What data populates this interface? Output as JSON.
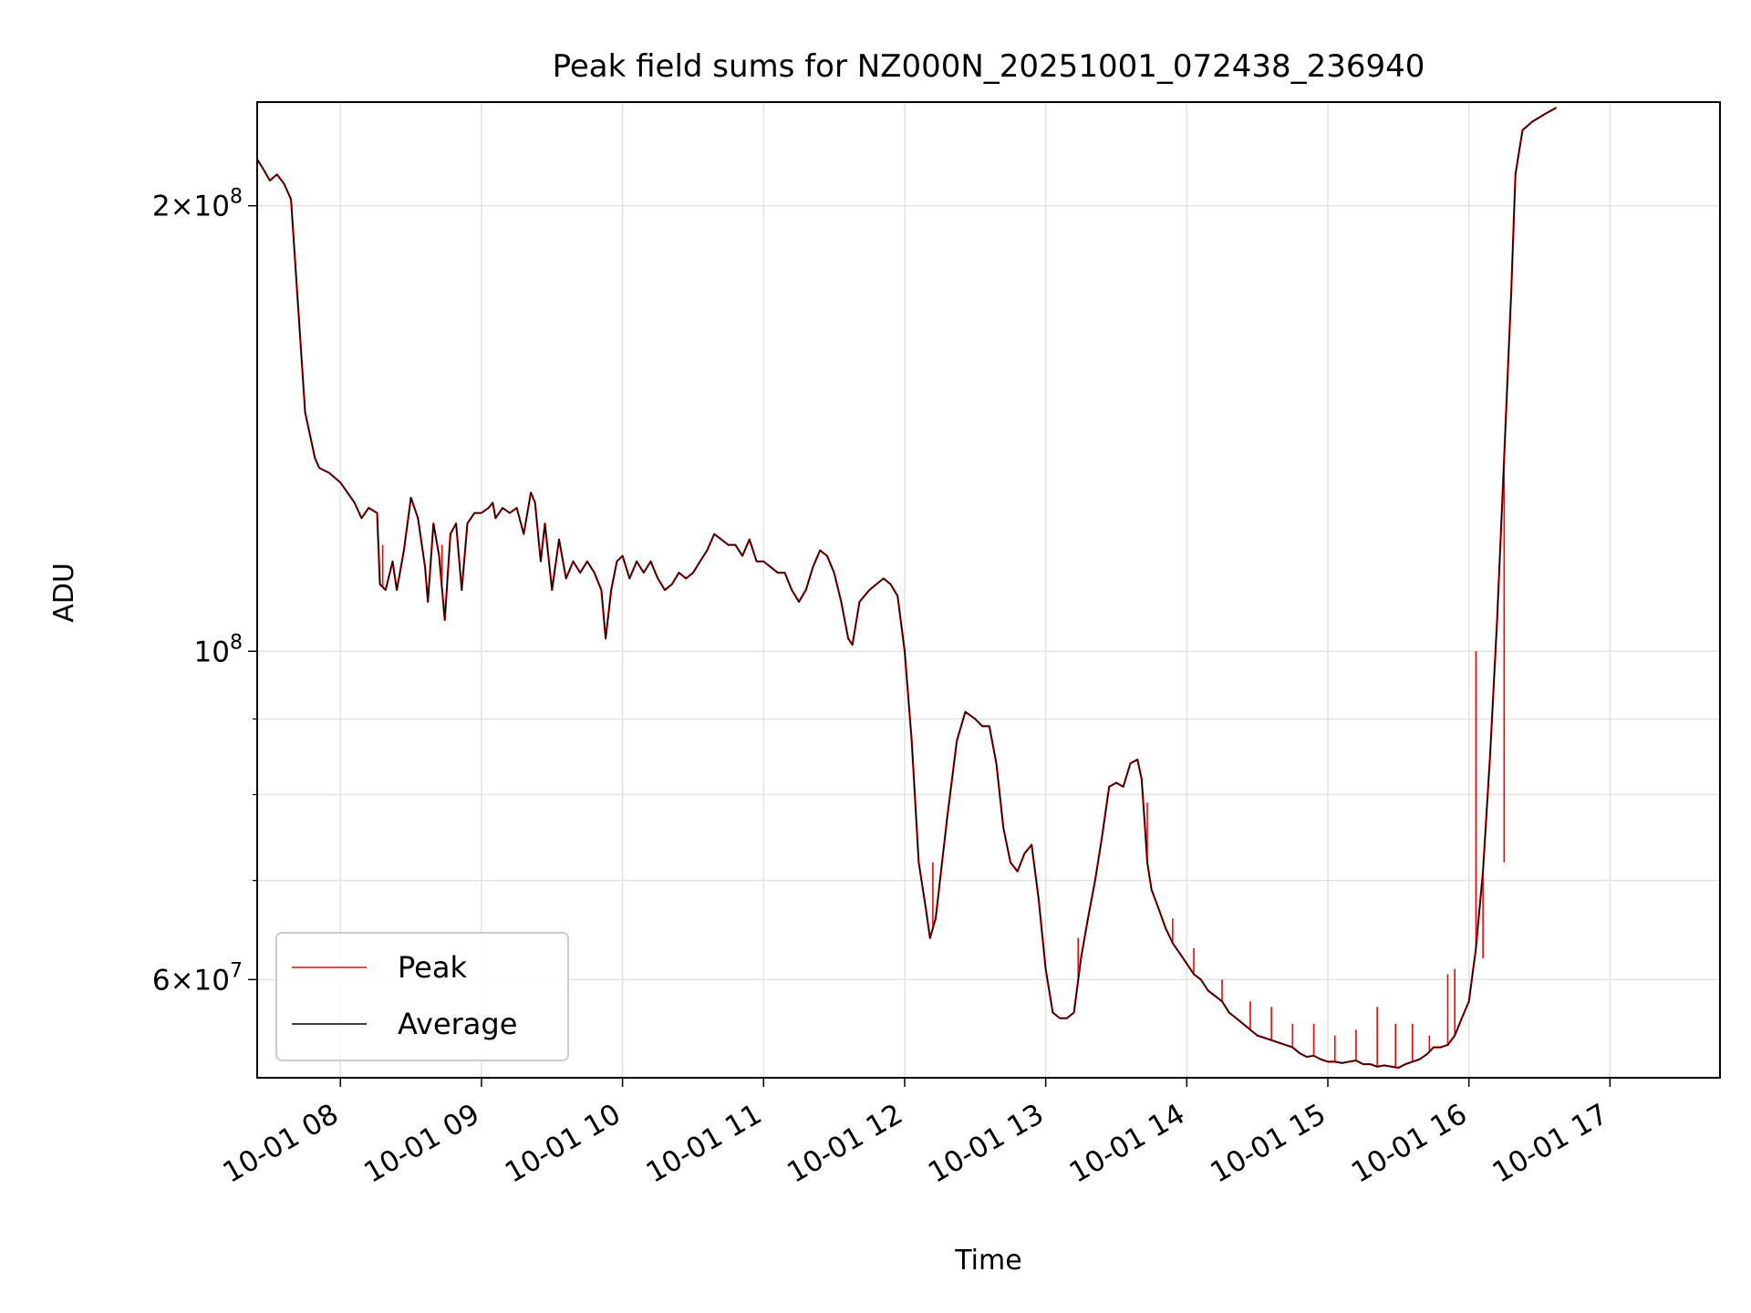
{
  "chart_data": {
    "type": "line",
    "title": "Peak field sums for NZ000N_20251001_072438_236940",
    "xlabel": "Time",
    "ylabel": "ADU",
    "yscale": "log",
    "ylim": [
      51500000,
      235000000
    ],
    "xlim_hours": [
      7.41,
      17.78
    ],
    "grid": true,
    "legend_position": "lower-left",
    "x_ticks": [
      {
        "hour": 8,
        "label": "10-01 08"
      },
      {
        "hour": 9,
        "label": "10-01 09"
      },
      {
        "hour": 10,
        "label": "10-01 10"
      },
      {
        "hour": 11,
        "label": "10-01 11"
      },
      {
        "hour": 12,
        "label": "10-01 12"
      },
      {
        "hour": 13,
        "label": "10-01 13"
      },
      {
        "hour": 14,
        "label": "10-01 14"
      },
      {
        "hour": 15,
        "label": "10-01 15"
      },
      {
        "hour": 16,
        "label": "10-01 16"
      },
      {
        "hour": 17,
        "label": "10-01 17"
      }
    ],
    "y_major_ticks": [
      {
        "value": 60000000,
        "mantissa": "6",
        "exponent": "7"
      },
      {
        "value": 100000000,
        "mantissa": "",
        "exponent": "8"
      },
      {
        "value": 200000000,
        "mantissa": "2",
        "exponent": "8"
      }
    ],
    "y_minor_ticks": [
      70000000,
      80000000,
      90000000
    ],
    "series": [
      {
        "name": "Peak",
        "color": "#ff0000"
      },
      {
        "name": "Average",
        "color": "#000000"
      }
    ],
    "average_points": [
      [
        7.41,
        215
      ],
      [
        7.45,
        212
      ],
      [
        7.5,
        208
      ],
      [
        7.55,
        210
      ],
      [
        7.6,
        207
      ],
      [
        7.62,
        205
      ],
      [
        7.65,
        202
      ],
      [
        7.75,
        145
      ],
      [
        7.82,
        135
      ],
      [
        7.85,
        133
      ],
      [
        7.92,
        132
      ],
      [
        8.0,
        130
      ],
      [
        8.05,
        128
      ],
      [
        8.1,
        126
      ],
      [
        8.15,
        123
      ],
      [
        8.2,
        125
      ],
      [
        8.26,
        124
      ],
      [
        8.28,
        111
      ],
      [
        8.32,
        110
      ],
      [
        8.37,
        115
      ],
      [
        8.4,
        110
      ],
      [
        8.45,
        117
      ],
      [
        8.5,
        127
      ],
      [
        8.55,
        123
      ],
      [
        8.6,
        114
      ],
      [
        8.62,
        108
      ],
      [
        8.66,
        122
      ],
      [
        8.7,
        116
      ],
      [
        8.74,
        105
      ],
      [
        8.78,
        120
      ],
      [
        8.82,
        122
      ],
      [
        8.86,
        110
      ],
      [
        8.9,
        122
      ],
      [
        8.95,
        124
      ],
      [
        9.0,
        124
      ],
      [
        9.05,
        125
      ],
      [
        9.08,
        126
      ],
      [
        9.1,
        123
      ],
      [
        9.15,
        125
      ],
      [
        9.2,
        124
      ],
      [
        9.25,
        125
      ],
      [
        9.3,
        120
      ],
      [
        9.35,
        128
      ],
      [
        9.38,
        126
      ],
      [
        9.42,
        115
      ],
      [
        9.45,
        122
      ],
      [
        9.5,
        110
      ],
      [
        9.55,
        119
      ],
      [
        9.6,
        112
      ],
      [
        9.65,
        115
      ],
      [
        9.7,
        113
      ],
      [
        9.75,
        115
      ],
      [
        9.8,
        113
      ],
      [
        9.85,
        110
      ],
      [
        9.88,
        102
      ],
      [
        9.92,
        110
      ],
      [
        9.96,
        115
      ],
      [
        10.0,
        116
      ],
      [
        10.05,
        112
      ],
      [
        10.1,
        115
      ],
      [
        10.15,
        113
      ],
      [
        10.2,
        115
      ],
      [
        10.25,
        112
      ],
      [
        10.3,
        110
      ],
      [
        10.35,
        111
      ],
      [
        10.4,
        113
      ],
      [
        10.45,
        112
      ],
      [
        10.5,
        113
      ],
      [
        10.55,
        115
      ],
      [
        10.6,
        117
      ],
      [
        10.65,
        120
      ],
      [
        10.7,
        119
      ],
      [
        10.75,
        118
      ],
      [
        10.8,
        118
      ],
      [
        10.85,
        116
      ],
      [
        10.9,
        119
      ],
      [
        10.95,
        115
      ],
      [
        11.0,
        115
      ],
      [
        11.05,
        114
      ],
      [
        11.1,
        113
      ],
      [
        11.15,
        113
      ],
      [
        11.2,
        110
      ],
      [
        11.25,
        108
      ],
      [
        11.3,
        110
      ],
      [
        11.35,
        114
      ],
      [
        11.4,
        117
      ],
      [
        11.45,
        116
      ],
      [
        11.5,
        113
      ],
      [
        11.55,
        108
      ],
      [
        11.6,
        102
      ],
      [
        11.63,
        101
      ],
      [
        11.68,
        108
      ],
      [
        11.75,
        110
      ],
      [
        11.8,
        111
      ],
      [
        11.85,
        112
      ],
      [
        11.9,
        111
      ],
      [
        11.95,
        109
      ],
      [
        12.0,
        100
      ],
      [
        12.05,
        87
      ],
      [
        12.1,
        72
      ],
      [
        12.15,
        67
      ],
      [
        12.18,
        64
      ],
      [
        12.22,
        66
      ],
      [
        12.3,
        77
      ],
      [
        12.37,
        87
      ],
      [
        12.43,
        91
      ],
      [
        12.5,
        90
      ],
      [
        12.55,
        89
      ],
      [
        12.6,
        89
      ],
      [
        12.65,
        84
      ],
      [
        12.7,
        76
      ],
      [
        12.75,
        72
      ],
      [
        12.8,
        71
      ],
      [
        12.85,
        73
      ],
      [
        12.9,
        74
      ],
      [
        12.95,
        68
      ],
      [
        13.0,
        61
      ],
      [
        13.05,
        57
      ],
      [
        13.1,
        56.5
      ],
      [
        13.15,
        56.5
      ],
      [
        13.2,
        57
      ],
      [
        13.25,
        62
      ],
      [
        13.3,
        66
      ],
      [
        13.35,
        70
      ],
      [
        13.4,
        75
      ],
      [
        13.45,
        81
      ],
      [
        13.5,
        81.5
      ],
      [
        13.55,
        81
      ],
      [
        13.6,
        84
      ],
      [
        13.65,
        84.5
      ],
      [
        13.68,
        82
      ],
      [
        13.7,
        77
      ],
      [
        13.72,
        72
      ],
      [
        13.75,
        69
      ],
      [
        13.8,
        67
      ],
      [
        13.85,
        65
      ],
      [
        13.9,
        63.5
      ],
      [
        13.95,
        62.5
      ],
      [
        14.0,
        61.5
      ],
      [
        14.05,
        60.5
      ],
      [
        14.1,
        60
      ],
      [
        14.15,
        59
      ],
      [
        14.2,
        58.5
      ],
      [
        14.25,
        58
      ],
      [
        14.3,
        57
      ],
      [
        14.35,
        56.5
      ],
      [
        14.4,
        56
      ],
      [
        14.45,
        55.5
      ],
      [
        14.5,
        55
      ],
      [
        14.55,
        54.8
      ],
      [
        14.6,
        54.6
      ],
      [
        14.65,
        54.4
      ],
      [
        14.7,
        54.2
      ],
      [
        14.75,
        54
      ],
      [
        14.8,
        53.5
      ],
      [
        14.85,
        53.2
      ],
      [
        14.9,
        53.3
      ],
      [
        14.95,
        53
      ],
      [
        15.0,
        52.8
      ],
      [
        15.05,
        52.8
      ],
      [
        15.1,
        52.7
      ],
      [
        15.15,
        52.8
      ],
      [
        15.2,
        52.9
      ],
      [
        15.25,
        52.6
      ],
      [
        15.3,
        52.6
      ],
      [
        15.35,
        52.4
      ],
      [
        15.4,
        52.5
      ],
      [
        15.45,
        52.4
      ],
      [
        15.5,
        52.3
      ],
      [
        15.55,
        52.6
      ],
      [
        15.6,
        52.8
      ],
      [
        15.65,
        53
      ],
      [
        15.7,
        53.4
      ],
      [
        15.75,
        54
      ],
      [
        15.8,
        54
      ],
      [
        15.85,
        54.2
      ],
      [
        15.9,
        55
      ],
      [
        15.95,
        56.5
      ],
      [
        16.0,
        58
      ],
      [
        16.05,
        63
      ],
      [
        16.1,
        71
      ],
      [
        16.15,
        85
      ],
      [
        16.2,
        105
      ],
      [
        16.25,
        135
      ],
      [
        16.3,
        175
      ],
      [
        16.33,
        210
      ],
      [
        16.38,
        225
      ],
      [
        16.45,
        228
      ],
      [
        16.55,
        231
      ],
      [
        16.62,
        233
      ]
    ],
    "peak_spikes": [
      [
        8.3,
        118
      ],
      [
        8.72,
        118
      ],
      [
        12.2,
        72
      ],
      [
        13.23,
        64
      ],
      [
        13.72,
        79
      ],
      [
        13.9,
        66
      ],
      [
        14.05,
        63
      ],
      [
        14.25,
        60
      ],
      [
        14.45,
        58
      ],
      [
        14.6,
        57.5
      ],
      [
        14.75,
        56
      ],
      [
        14.9,
        56
      ],
      [
        15.05,
        55
      ],
      [
        15.2,
        55.5
      ],
      [
        15.35,
        57.5
      ],
      [
        15.48,
        56
      ],
      [
        15.6,
        56
      ],
      [
        15.72,
        55
      ],
      [
        15.85,
        60.5
      ],
      [
        15.9,
        61
      ],
      [
        16.05,
        100
      ],
      [
        16.1,
        62
      ],
      [
        16.25,
        72
      ]
    ]
  }
}
